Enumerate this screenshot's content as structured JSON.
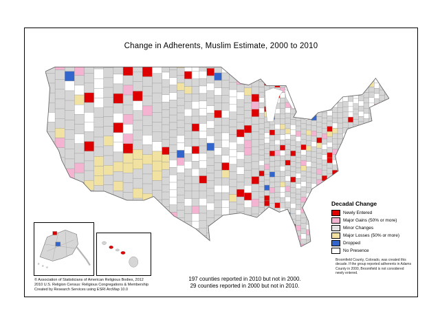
{
  "title": "Change in Adherents, Muslim Estimate, 2000 to 2010",
  "legend": {
    "title": "Decadal Change",
    "items": [
      {
        "key": "newly",
        "label": "Newly Entered",
        "color": "#DE0000"
      },
      {
        "key": "gains",
        "label": "Major Gains (50% or more)",
        "color": "#F5B3D2"
      },
      {
        "key": "minor",
        "label": "Minor Changes",
        "color": "#E3E3E3"
      },
      {
        "key": "losses",
        "label": "Major Losses (50% or more)",
        "color": "#F1E2A2"
      },
      {
        "key": "dropped",
        "label": "Dropped",
        "color": "#3366CC"
      },
      {
        "key": "none",
        "label": "No Presence",
        "color": "#FFFFFF"
      }
    ],
    "note": "Broomfield County, Colorado, was created this decade. If the group reported adherents in Adams County in 2000, Broomfield is not considered newly entered."
  },
  "map": {
    "base_color": "#D6D6D6",
    "county_border_color": "#9B9B9B",
    "outline_color": "#666666"
  },
  "footnotes": {
    "line1": "197 counties reported in 2010 but not in 2000.",
    "line2": "29 counties reported in 2000 but not in 2010."
  },
  "credits": {
    "line1": "© Association of Statisticians of American Religious Bodies, 2012",
    "line2": "2010 U.S. Religion Census: Religious Congregations & Membership",
    "line3": "Created by Research Services using ESRI ArcMap 10.0"
  }
}
